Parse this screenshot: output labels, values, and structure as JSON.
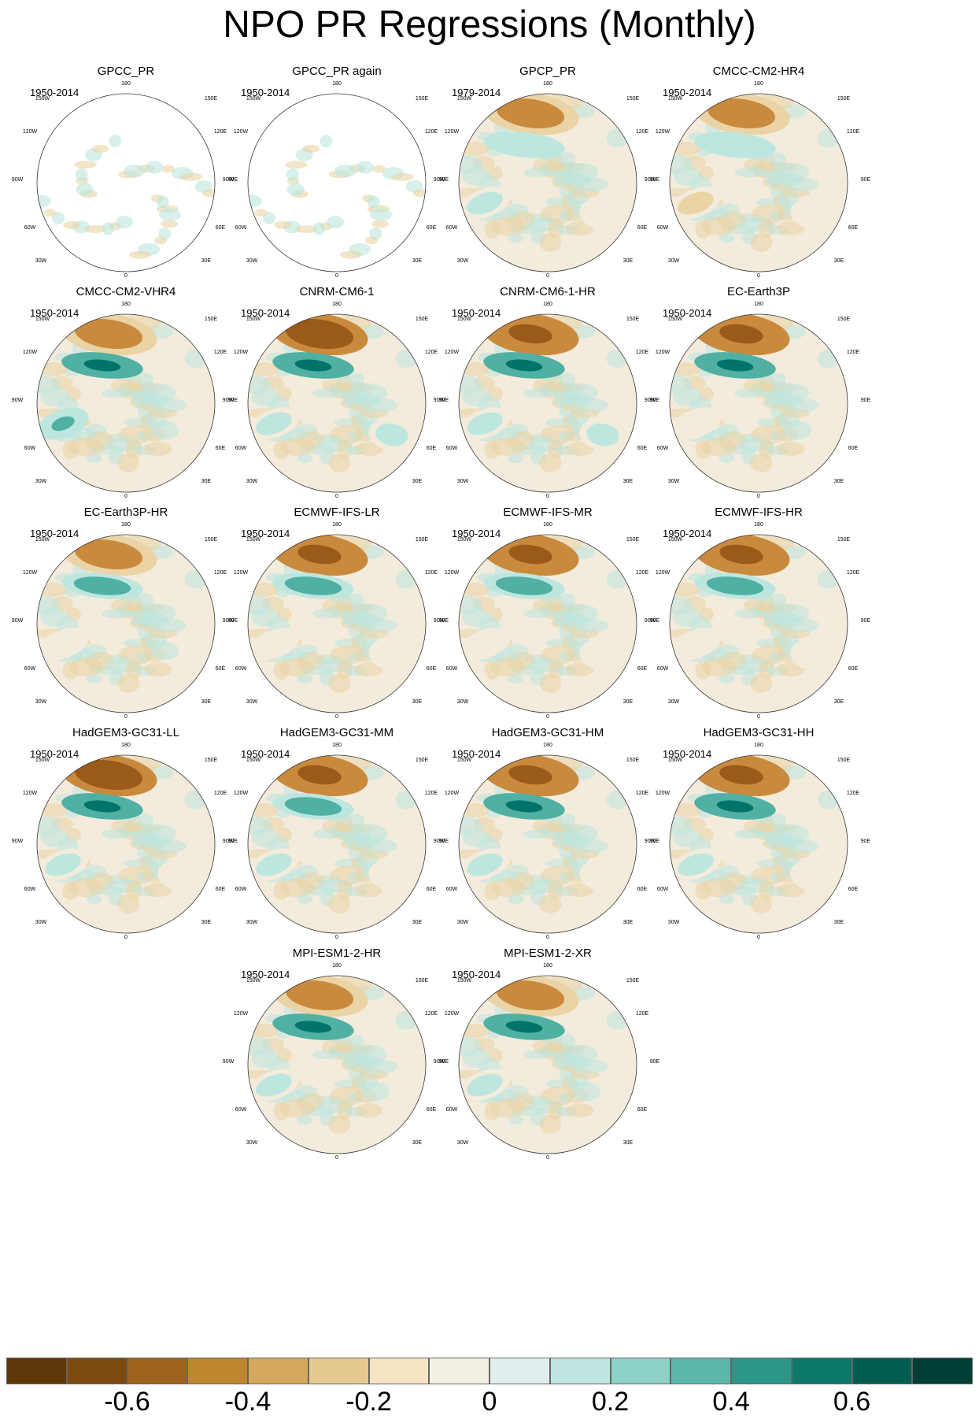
{
  "title": "NPO PR Regressions (Monthly)",
  "map": {
    "projection": "north polar stereographic",
    "longitude_labels": [
      "180",
      "150E",
      "120E",
      "90E",
      "60E",
      "30E",
      "0",
      "30W",
      "60W",
      "90W",
      "120W",
      "150W"
    ]
  },
  "colors": {
    "neg3": "#9a5a1a",
    "neg2": "#c98a3e",
    "neg1": "#ead3a4",
    "zero": "#f3ecdd",
    "pos1": "#bde6df",
    "pos2": "#4fb0a3",
    "pos3": "#007468",
    "land": "#ffffff",
    "outline": "#707070"
  },
  "panels": [
    {
      "name": "GPCC_PR",
      "years": "1950-2014",
      "ocean_missing": true,
      "pattern": {
        "a": 0,
        "b": 0,
        "c": 0,
        "d": 0
      }
    },
    {
      "name": "GPCC_PR again",
      "years": "1950-2014",
      "ocean_missing": true,
      "pattern": {
        "a": 0,
        "b": 0,
        "c": 0,
        "d": 0
      }
    },
    {
      "name": "GPCP_PR",
      "years": "1979-2014",
      "pattern": {
        "a": -0.35,
        "b": 0.15,
        "c": 0.1,
        "d": 0.05
      }
    },
    {
      "name": "CMCC-CM2-HR4",
      "years": "1950-2014",
      "pattern": {
        "a": -0.35,
        "b": 0.15,
        "c": -0.1,
        "d": 0.05
      }
    },
    {
      "name": "CMCC-CM2-VHR4",
      "years": "1950-2014",
      "pattern": {
        "a": -0.45,
        "b": 0.5,
        "c": 0.3,
        "d": 0
      }
    },
    {
      "name": "CNRM-CM6-1",
      "years": "1950-2014",
      "pattern": {
        "a": -0.7,
        "b": 0.5,
        "c": 0.1,
        "d": 0.1
      }
    },
    {
      "name": "CNRM-CM6-1-HR",
      "years": "1950-2014",
      "pattern": {
        "a": -0.6,
        "b": 0.65,
        "c": 0.1,
        "d": 0.1
      }
    },
    {
      "name": "EC-Earth3P",
      "years": "1950-2014",
      "pattern": {
        "a": -0.5,
        "b": 0.5,
        "c": 0.05,
        "d": 0
      }
    },
    {
      "name": "EC-Earth3P-HR",
      "years": "1950-2014",
      "pattern": {
        "a": -0.45,
        "b": 0.45,
        "c": 0.05,
        "d": 0
      }
    },
    {
      "name": "ECMWF-IFS-LR",
      "years": "1950-2014",
      "pattern": {
        "a": -0.5,
        "b": 0.45,
        "c": 0.05,
        "d": -0.05
      }
    },
    {
      "name": "ECMWF-IFS-MR",
      "years": "1950-2014",
      "pattern": {
        "a": -0.55,
        "b": 0.45,
        "c": 0.05,
        "d": -0.05
      }
    },
    {
      "name": "ECMWF-IFS-HR",
      "years": "1950-2014",
      "pattern": {
        "a": -0.55,
        "b": 0.45,
        "c": 0.05,
        "d": -0.05
      }
    },
    {
      "name": "HadGEM3-GC31-LL",
      "years": "1950-2014",
      "pattern": {
        "a": -0.7,
        "b": 0.55,
        "c": 0.1,
        "d": 0.05
      }
    },
    {
      "name": "HadGEM3-GC31-MM",
      "years": "1950-2014",
      "pattern": {
        "a": -0.65,
        "b": 0.45,
        "c": 0.1,
        "d": 0.05
      }
    },
    {
      "name": "HadGEM3-GC31-HM",
      "years": "1950-2014",
      "pattern": {
        "a": -0.6,
        "b": 0.5,
        "c": 0.1,
        "d": 0.05
      }
    },
    {
      "name": "HadGEM3-GC31-HH",
      "years": "1950-2014",
      "pattern": {
        "a": -0.65,
        "b": 0.5,
        "c": 0.1,
        "d": 0.05
      }
    },
    {
      "name": "MPI-ESM1-2-HR",
      "years": "1950-2014",
      "pattern": {
        "a": -0.45,
        "b": 0.65,
        "c": 0.1,
        "d": 0
      }
    },
    {
      "name": "MPI-ESM1-2-XR",
      "years": "1950-2014",
      "pattern": {
        "a": -0.45,
        "b": 0.6,
        "c": 0.1,
        "d": 0
      }
    }
  ],
  "colorbar": {
    "labels": [
      "-0.6",
      "-0.4",
      "-0.2",
      "0",
      "0.2",
      "0.4",
      "0.6"
    ],
    "fill_colors": [
      "#5e3809",
      "#7d4a0f",
      "#9e631c",
      "#c0862f",
      "#d4a75c",
      "#e6c98f",
      "#f4e4c1",
      "#f3efe4",
      "#e0efee",
      "#bfe6e0",
      "#8dd2c6",
      "#5cb7aa",
      "#2e9689",
      "#0c7869",
      "#005d52",
      "#003f36"
    ]
  }
}
